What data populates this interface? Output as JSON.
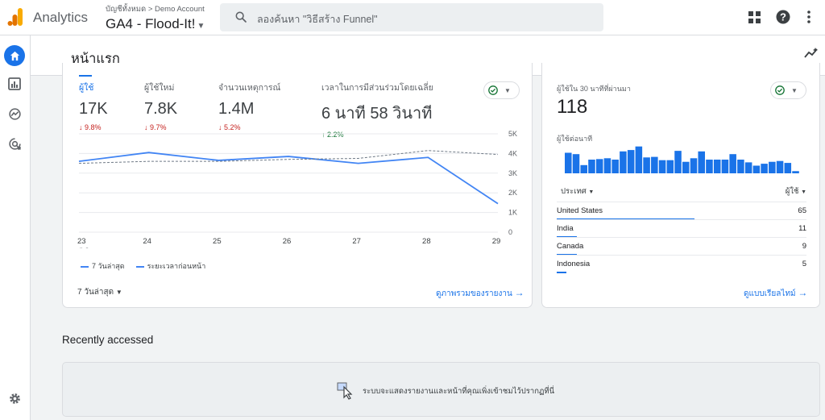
{
  "app": {
    "name": "Analytics"
  },
  "account": {
    "breadcrumb_all": "บัญชีทั้งหมด",
    "breadcrumb_sep": ">",
    "account_name": "Demo Account",
    "property": "GA4 - Flood-It!"
  },
  "search": {
    "placeholder": "ลองค้นหา \"วิธีสร้าง Funnel\""
  },
  "page": {
    "title": "หน้าแรก"
  },
  "metrics": [
    {
      "label": "ผู้ใช้",
      "value": "17K",
      "delta": "9.8%",
      "direction": "down"
    },
    {
      "label": "ผู้ใช้ใหม่",
      "value": "7.8K",
      "delta": "9.7%",
      "direction": "down"
    },
    {
      "label": "จำนวนเหตุการณ์",
      "value": "1.4M",
      "delta": "5.2%",
      "direction": "down"
    },
    {
      "label": "เวลาในการมีส่วนร่วมโดยเฉลี่ย",
      "value": "6 นาที 58 วินาที",
      "delta": "2.2%",
      "direction": "up"
    }
  ],
  "chart_data": {
    "type": "line",
    "x": [
      "23",
      "24",
      "25",
      "26",
      "27",
      "28",
      "29"
    ],
    "x_sublabel": "ต.ค.",
    "y_ticks": [
      "5K",
      "4K",
      "3K",
      "2K",
      "1K",
      "0"
    ],
    "ylim": [
      0,
      5000
    ],
    "grid": true,
    "series": [
      {
        "name": "7 วันล่าสุด",
        "style": "solid",
        "color": "#4285f4",
        "values": [
          3600,
          4050,
          3650,
          3850,
          3500,
          3800,
          1450
        ]
      },
      {
        "name": "ระยะเวลาก่อนหน้า",
        "style": "dashed",
        "color": "#4285f4",
        "values": [
          3500,
          3600,
          3600,
          3700,
          3750,
          4150,
          3950
        ]
      }
    ]
  },
  "main_card": {
    "range_label": "7 วันล่าสุด",
    "report_link": "ดูภาพรวมของรายงาน"
  },
  "realtime": {
    "label": "ผู้ใช้ใน 30 นาทีที่ผ่านมา",
    "value": "118",
    "per_minute_label": "ผู้ใช้ต่อนาที",
    "per_minute_bars": [
      0.75,
      0.7,
      0.3,
      0.5,
      0.52,
      0.55,
      0.5,
      0.8,
      0.85,
      0.98,
      0.58,
      0.6,
      0.48,
      0.48,
      0.82,
      0.42,
      0.55,
      0.8,
      0.5,
      0.5,
      0.5,
      0.7,
      0.5,
      0.4,
      0.28,
      0.35,
      0.42,
      0.45,
      0.38,
      0.08
    ],
    "country_header": "ประเทศ",
    "users_header": "ผู้ใช้",
    "rows": [
      {
        "country": "United States",
        "users": "65",
        "share": 0.55
      },
      {
        "country": "India",
        "users": "11",
        "share": 0.08
      },
      {
        "country": "Canada",
        "users": "9",
        "share": 0.08
      },
      {
        "country": "Indonesia",
        "users": "5",
        "share": 0.04
      }
    ],
    "link": "ดูแบบเรียลไทม์"
  },
  "recent": {
    "title": "Recently accessed",
    "empty_message": "ระบบจะแสดงรายงานและหน้าที่คุณเพิ่งเข้าชมไว้ปรากฏที่นี่"
  },
  "colors": {
    "accent": "#1a73e8",
    "logo_orange": "#f9ab00",
    "logo_dark_orange": "#e37400"
  }
}
